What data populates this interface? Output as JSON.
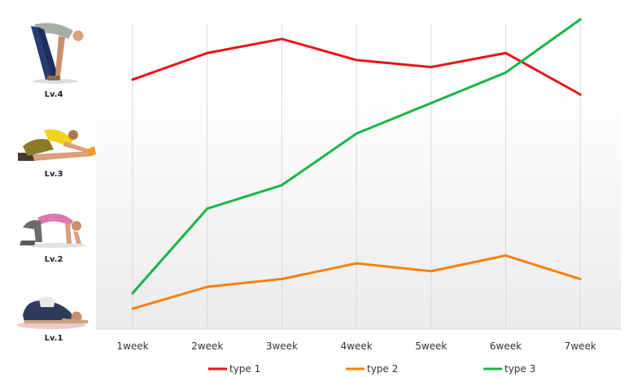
{
  "chart_data": {
    "type": "line",
    "categories": [
      "1week",
      "2week",
      "3week",
      "4week",
      "5week",
      "6week",
      "7week"
    ],
    "ylim": [
      0,
      4
    ],
    "grid": "vertical",
    "legend_position": "bottom",
    "y_levels": [
      {
        "label": "Lv.1",
        "value": 0.37
      },
      {
        "label": "Lv.2",
        "value": 1.33
      },
      {
        "label": "Lv.3",
        "value": 2.33
      },
      {
        "label": "Lv.4",
        "value": 3.3
      }
    ],
    "series": [
      {
        "name": "type 1",
        "color": "#e8141c",
        "values": [
          3.19,
          3.53,
          3.71,
          3.44,
          3.35,
          3.53,
          3.0
        ]
      },
      {
        "name": "type 2",
        "color": "#f5820f",
        "values": [
          0.26,
          0.54,
          0.64,
          0.84,
          0.74,
          0.94,
          0.64
        ]
      },
      {
        "name": "type 3",
        "color": "#18b548",
        "values": [
          0.46,
          1.54,
          1.84,
          2.5,
          2.89,
          3.28,
          3.96
        ]
      }
    ]
  }
}
